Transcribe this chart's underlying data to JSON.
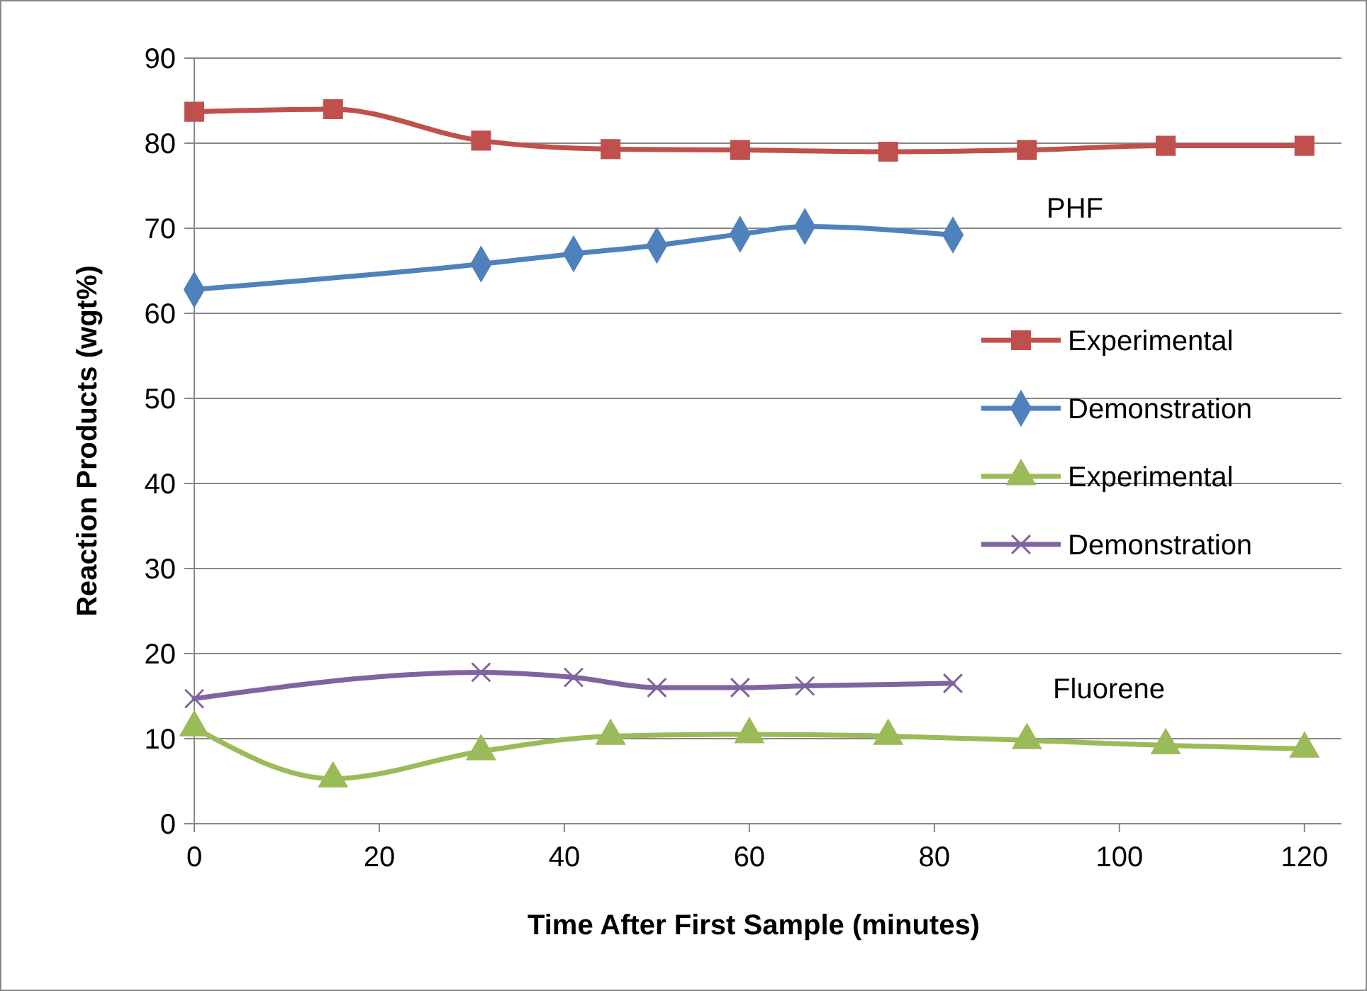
{
  "chart_data": {
    "type": "line",
    "xlabel": "Time After First Sample (minutes)",
    "ylabel": "Reaction Products (wgt%)",
    "xlim": [
      0,
      124
    ],
    "xticks": [
      0,
      20,
      40,
      60,
      80,
      100,
      120
    ],
    "ylim": [
      0,
      90
    ],
    "yticks": [
      0,
      10,
      20,
      30,
      40,
      50,
      60,
      70,
      80,
      90
    ],
    "grid": "y",
    "legend": "right",
    "line_style": "solid",
    "series": [
      {
        "name": "Experimental",
        "color": "#c0504d",
        "marker": "square",
        "x": [
          0,
          15,
          31,
          45,
          59,
          75,
          90,
          105,
          120
        ],
        "values": [
          83.7,
          84.0,
          80.3,
          79.3,
          79.2,
          79.0,
          79.2,
          79.7,
          79.7
        ]
      },
      {
        "name": "Demonstration",
        "color": "#4f81bd",
        "marker": "diamond",
        "x": [
          0,
          31,
          41,
          50,
          59,
          66,
          82
        ],
        "values": [
          62.8,
          65.8,
          67.0,
          68.0,
          69.3,
          70.2,
          69.2
        ]
      },
      {
        "name": "Experimental",
        "color": "#9bbb59",
        "marker": "triangle",
        "x": [
          0,
          15,
          31,
          45,
          60,
          75,
          90,
          105,
          120
        ],
        "values": [
          11.3,
          5.3,
          8.5,
          10.3,
          10.5,
          10.3,
          9.8,
          9.2,
          8.8
        ]
      },
      {
        "name": "Demonstration",
        "color": "#8064a2",
        "marker": "cross",
        "x": [
          0,
          31,
          41,
          50,
          59,
          66,
          82
        ],
        "values": [
          14.7,
          17.8,
          17.2,
          16.0,
          16.0,
          16.2,
          16.5
        ]
      }
    ],
    "annotations": [
      "PHF",
      "Fluorene"
    ]
  }
}
